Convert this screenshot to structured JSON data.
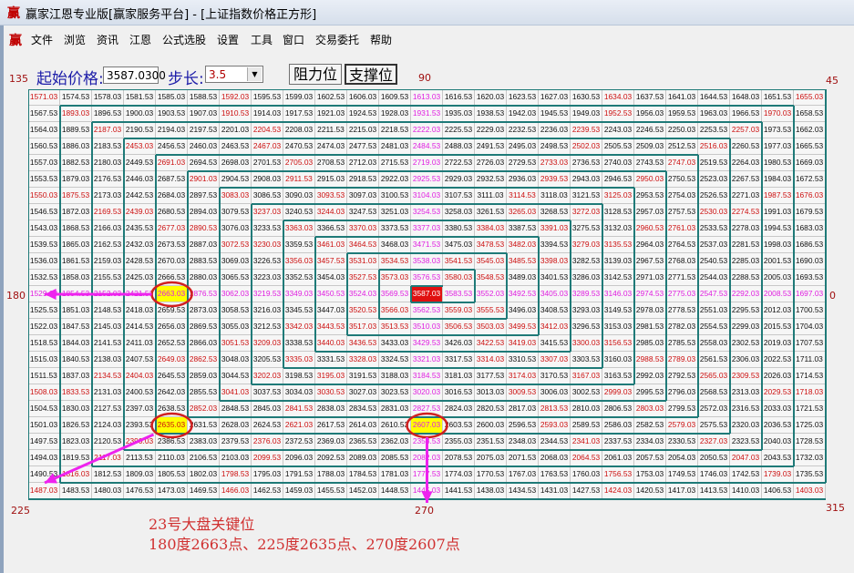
{
  "window": {
    "title": "赢家江恩专业版[赢家服务平台] - [上证指数价格正方形]",
    "app_icon": "赢"
  },
  "menu": [
    "文件",
    "浏览",
    "资讯",
    "江恩",
    "公式选股",
    "设置",
    "工具",
    "窗口",
    "交易委托",
    "帮助"
  ],
  "controls": {
    "start_price_label": "起始价格:",
    "start_price_value": "3587.0300",
    "step_label": "步长:",
    "step_value": "3.5",
    "resistance_button": "阻力位",
    "support_button": "支撑位"
  },
  "angles": {
    "a135": "135",
    "a90": "90",
    "a45": "45",
    "a180": "180",
    "a0": "0",
    "a225": "225",
    "a270": "270",
    "a315": "315"
  },
  "grid": {
    "center_price": 3587.03,
    "step": 3.5,
    "size": 25,
    "highlighted": [
      "2663.03",
      "2635.03",
      "2607.03"
    ]
  },
  "annotation": {
    "line1": "23号大盘关键位",
    "line2": "180度2663点、225度2635点、270度2607点"
  },
  "colors": {
    "cross": "#e020e0",
    "angle_line": "#cc1010",
    "normal": "#111111",
    "center_bg": "#e01010",
    "highlight_bg": "#ffff00",
    "wall": "#1f7a78",
    "arrow": "#ee22ee",
    "oval": "#d02020"
  }
}
